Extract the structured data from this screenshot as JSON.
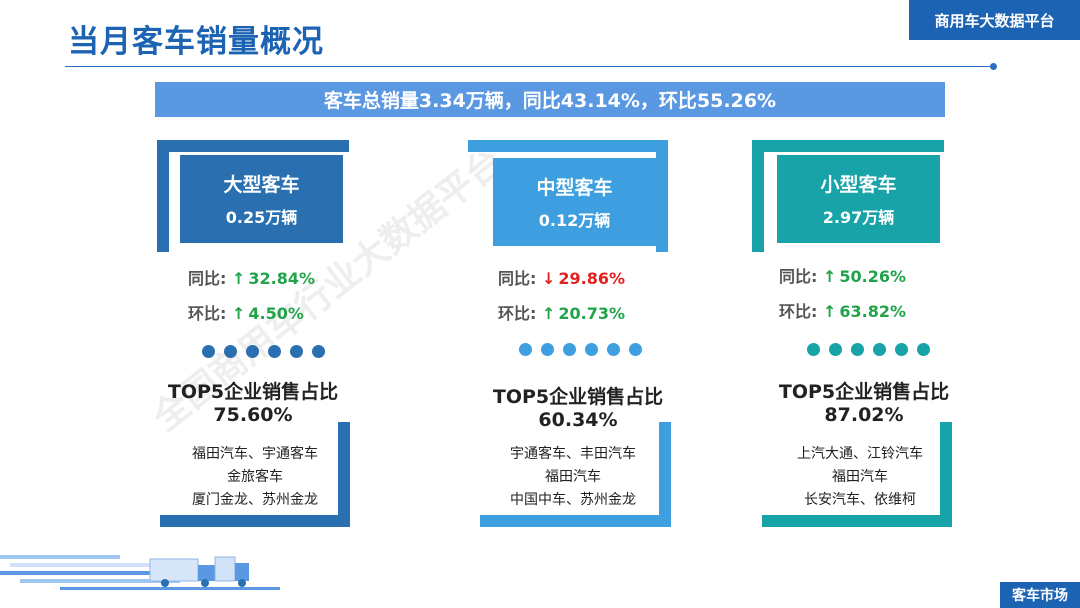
{
  "header": {
    "title": "当月客车销量概况",
    "platform_label": "商用车大数据平台"
  },
  "summary": "客车总销量3.34万辆，同比43.14%，环比55.26%",
  "watermark": "全国商用车行业大数据平台",
  "segments": [
    {
      "name": "大型客车",
      "volume": "0.25万辆",
      "yoy_label": "同比:",
      "yoy_arrow": "↑",
      "yoy_value": "32.84%",
      "mom_label": "环比:",
      "mom_arrow": "↑",
      "mom_value": "4.50%",
      "top5_label": "TOP5企业销售占比",
      "top5_pct": "75.60%",
      "companies": [
        "福田汽车、宇通客车",
        "金旅客车",
        "厦门金龙、苏州金龙"
      ],
      "color": "#2a6fb0"
    },
    {
      "name": "中型客车",
      "volume": "0.12万辆",
      "yoy_label": "同比:",
      "yoy_arrow": "↓",
      "yoy_value": "29.86%",
      "mom_label": "环比:",
      "mom_arrow": "↑",
      "mom_value": "20.73%",
      "top5_label": "TOP5企业销售占比",
      "top5_pct": "60.34%",
      "companies": [
        "宇通客车、丰田汽车",
        "福田汽车",
        "中国中车、苏州金龙"
      ],
      "color": "#3d9fe0"
    },
    {
      "name": "小型客车",
      "volume": "2.97万辆",
      "yoy_label": "同比:",
      "yoy_arrow": "↑",
      "yoy_value": "50.26%",
      "mom_label": "环比:",
      "mom_arrow": "↑",
      "mom_value": "63.82%",
      "top5_label": "TOP5企业销售占比",
      "top5_pct": "87.02%",
      "companies": [
        "上汽大通、江铃汽车",
        "福田汽车",
        "长安汽车、依维柯"
      ],
      "color": "#17a3a8"
    }
  ],
  "colors": {
    "brand_blue": "#1d63b4",
    "summary_bar": "#5b98e2",
    "up": "#21a34a",
    "down": "#e32020"
  },
  "footer_tag": "客车市场"
}
